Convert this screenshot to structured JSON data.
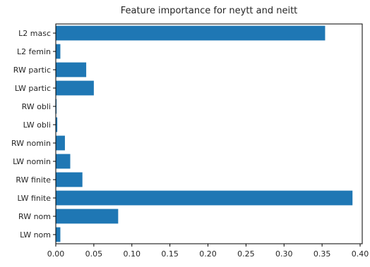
{
  "chart_data": {
    "type": "bar",
    "orientation": "horizontal",
    "title": "Feature importance for neytt and neitt",
    "xlabel": "",
    "ylabel": "",
    "categories": [
      "L2 masc",
      "L2 femin",
      "RW partic",
      "LW partic",
      "RW obli",
      "LW obli",
      "RW nomin",
      "LW nomin",
      "RW finite",
      "LW finite",
      "RW nom",
      "LW nom"
    ],
    "values": [
      0.354,
      0.006,
      0.04,
      0.05,
      0.001,
      0.002,
      0.012,
      0.019,
      0.035,
      0.39,
      0.082,
      0.006
    ],
    "xlim": [
      0,
      0.4
    ],
    "xticks": [
      "0.00",
      "0.05",
      "0.10",
      "0.15",
      "0.20",
      "0.25",
      "0.30",
      "0.35",
      "0.40"
    ],
    "grid": false,
    "legend": "none",
    "bar_color": "#1f77b4"
  }
}
